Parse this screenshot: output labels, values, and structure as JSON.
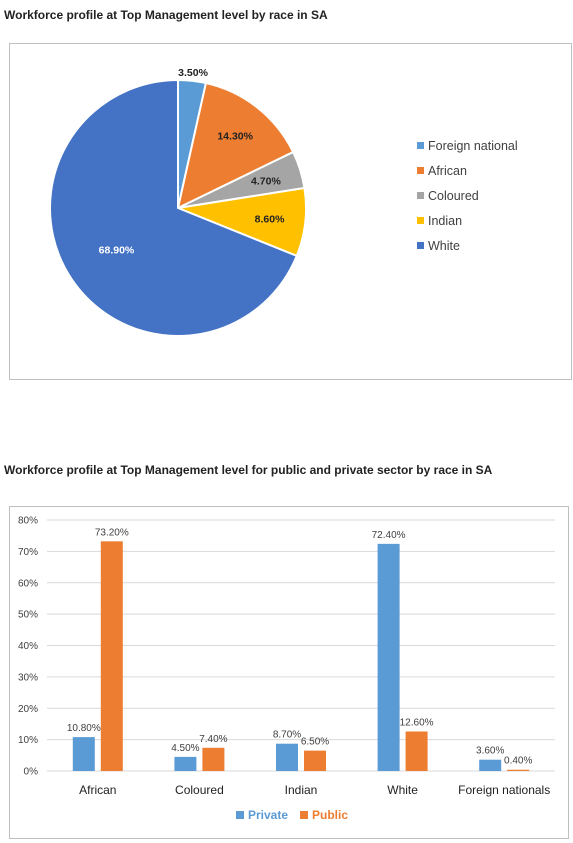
{
  "charts": {
    "pie_title": "Workforce profile at Top Management level by race in SA",
    "bar_title": "Workforce profile at Top Management level for public and private sector by race in SA"
  },
  "chart_data": [
    {
      "type": "pie",
      "title": "Workforce profile at Top Management level by race in SA",
      "categories": [
        "Foreign national",
        "African",
        "Coloured",
        "Indian",
        "White"
      ],
      "values": [
        3.5,
        14.3,
        4.7,
        8.6,
        68.9
      ],
      "labels": [
        "3.50%",
        "14.30%",
        "4.70%",
        "8.60%",
        "68.90%"
      ],
      "colors": [
        "#5b9bd5",
        "#ed7d31",
        "#a5a5a5",
        "#ffc000",
        "#4472c4"
      ],
      "legend_position": "right"
    },
    {
      "type": "bar",
      "title": "Workforce profile at Top Management level for public and private sector by race in SA",
      "categories": [
        "African",
        "Coloured",
        "Indian",
        "White",
        "Foreign nationals"
      ],
      "series": [
        {
          "name": "Private",
          "values": [
            10.8,
            4.5,
            8.7,
            72.4,
            3.6
          ],
          "labels": [
            "10.80%",
            "4.50%",
            "8.70%",
            "72.40%",
            "3.60%"
          ],
          "color": "#5b9bd5"
        },
        {
          "name": "Public",
          "values": [
            73.2,
            7.4,
            6.5,
            12.6,
            0.4
          ],
          "labels": [
            "73.20%",
            "7.40%",
            "6.50%",
            "12.60%",
            "0.40%"
          ],
          "color": "#ed7d31"
        }
      ],
      "ylim": [
        0,
        80
      ],
      "yticks": [
        "0%",
        "10%",
        "20%",
        "30%",
        "40%",
        "50%",
        "60%",
        "70%",
        "80%"
      ],
      "grid": true,
      "legend_position": "bottom"
    }
  ]
}
